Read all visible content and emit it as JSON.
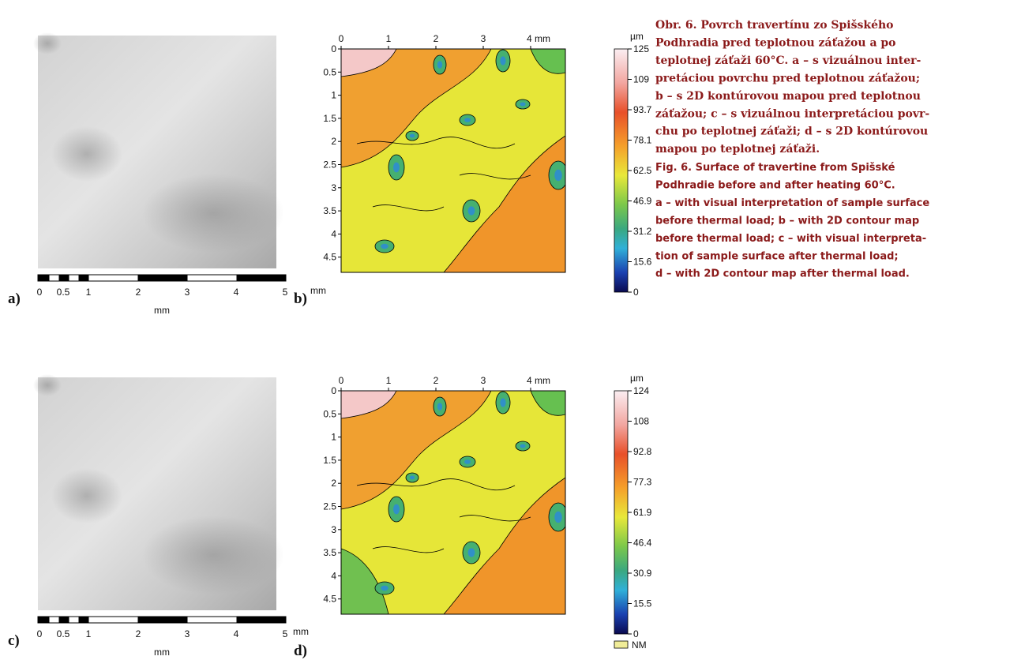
{
  "figure": {
    "panels": [
      {
        "label": "a)",
        "scale_labels": [
          "0",
          "0.5",
          "1",
          "2",
          "3",
          "4",
          "5"
        ],
        "scale_unit": "mm"
      },
      {
        "label": "b)",
        "x_labels": [
          "0",
          "1",
          "2",
          "3",
          "4 mm"
        ],
        "y_labels": [
          "0",
          "0.5",
          "1",
          "1.5",
          "2",
          "2.5",
          "3",
          "3.5",
          "4",
          "4.5"
        ],
        "axis_unit": "mm",
        "colorbar_unit": "µm",
        "colorbar_labels": [
          "125",
          "109",
          "93.7",
          "78.1",
          "62.5",
          "46.9",
          "31.2",
          "15.6",
          "0"
        ]
      },
      {
        "label": "c)",
        "scale_labels": [
          "0",
          "0.5",
          "1",
          "2",
          "3",
          "4",
          "5"
        ],
        "scale_unit": "mm"
      },
      {
        "label": "d)",
        "x_labels": [
          "0",
          "1",
          "2",
          "3",
          "4 mm"
        ],
        "y_labels": [
          "0",
          "0.5",
          "1",
          "1.5",
          "2",
          "2.5",
          "3",
          "3.5",
          "4",
          "4.5"
        ],
        "axis_unit": "mm",
        "colorbar_unit": "µm",
        "colorbar_labels": [
          "124",
          "108",
          "92.8",
          "77.3",
          "61.9",
          "46.4",
          "30.9",
          "15.5",
          "0"
        ],
        "legend": "NM"
      }
    ]
  },
  "caption": {
    "slovak": [
      "Obr. 6. Povrch travertínu zo Spišského",
      "Podhradia pred teplotnou záťažou a po",
      "teplotnej záťaži 60°C. a – s vizuálnou inter-",
      "pretáciou povrchu pred teplotnou záťažou;",
      "b – s 2D kontúrovou mapou pred teplotnou",
      "záťažou; c – s vizuálnou interpretáciou povr-",
      "chu po teplotnej záťaži; d – s 2D kontúrovou",
      "mapou po teplotnej záťaži."
    ],
    "english": [
      "Fig. 6. Surface of travertine from Spišské",
      "Podhradie before and after heating 60°C.",
      "a – with visual interpretation of sample surface",
      "before thermal load; b – with 2D contour map",
      "before thermal load; c – with visual interpreta-",
      "tion of sample surface after thermal load;",
      "d – with 2D contour map after thermal load."
    ]
  }
}
